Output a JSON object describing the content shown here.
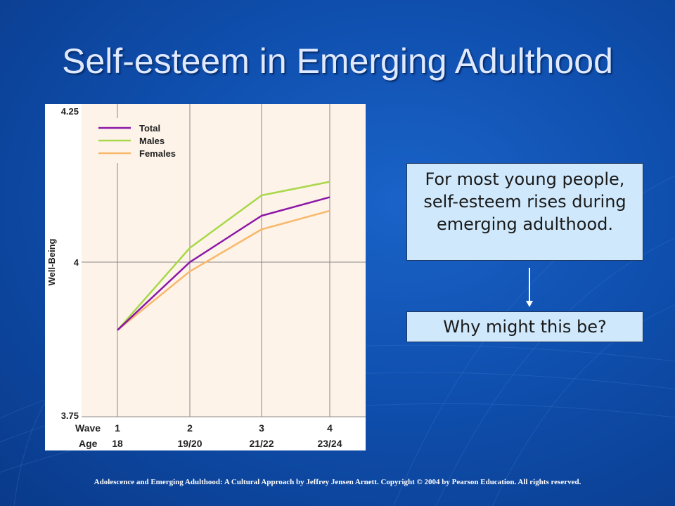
{
  "slide": {
    "title": "Self-esteem in Emerging Adulthood",
    "callout_main": "For most young people, self-esteem rises during emerging adulthood.",
    "callout_question": "Why might this be?",
    "footer": "Adolescence and Emerging Adulthood: A Cultural Approach by Jeffrey Jensen Arnett.  Copyright © 2004 by Pearson Education. All rights reserved."
  },
  "colors": {
    "total": "#8b16a8",
    "males": "#a8d84a",
    "females": "#f8b86c",
    "plot_bg": "#fdf3e8",
    "grid": "#8a8a8a"
  },
  "chart_data": {
    "type": "line",
    "title": "",
    "xlabel": "",
    "ylabel": "Well-Being",
    "x_row_labels": [
      "Wave",
      "Age"
    ],
    "categories": [
      "1",
      "2",
      "3",
      "4"
    ],
    "age_labels": [
      "18",
      "19/20",
      "21/22",
      "23/24"
    ],
    "ylim": [
      3.75,
      4.25
    ],
    "yticks": [
      "4.25",
      "4",
      "3.75"
    ],
    "ytick_values": [
      4.25,
      4.0,
      3.75
    ],
    "legend_position": "top-left",
    "grid": true,
    "series": [
      {
        "name": "Total",
        "values": [
          3.89,
          4.0,
          4.075,
          4.105
        ]
      },
      {
        "name": "Males",
        "values": [
          3.89,
          4.023,
          4.108,
          4.13
        ]
      },
      {
        "name": "Females",
        "values": [
          3.89,
          3.985,
          4.053,
          4.083
        ]
      }
    ]
  }
}
